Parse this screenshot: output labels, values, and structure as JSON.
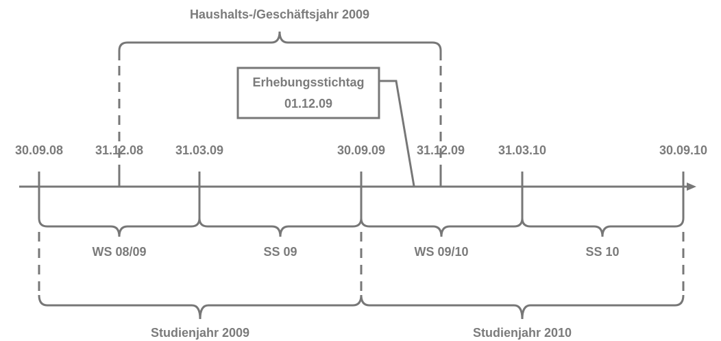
{
  "title": "Haushalts-/Geschäftsjahr 2009",
  "callout": {
    "lines": [
      "Erhebungsstichtag",
      "01.12.09"
    ]
  },
  "dates": [
    "30.09.08",
    "31.12.08",
    "31.03.09",
    "30.09.09",
    "31.12.09",
    "31.03.10",
    "30.09.10"
  ],
  "semesters": [
    "WS 08/09",
    "SS 09",
    "WS 09/10",
    "SS 10"
  ],
  "study_years": [
    "Studienjahr 2009",
    "Studienjahr 2010"
  ]
}
